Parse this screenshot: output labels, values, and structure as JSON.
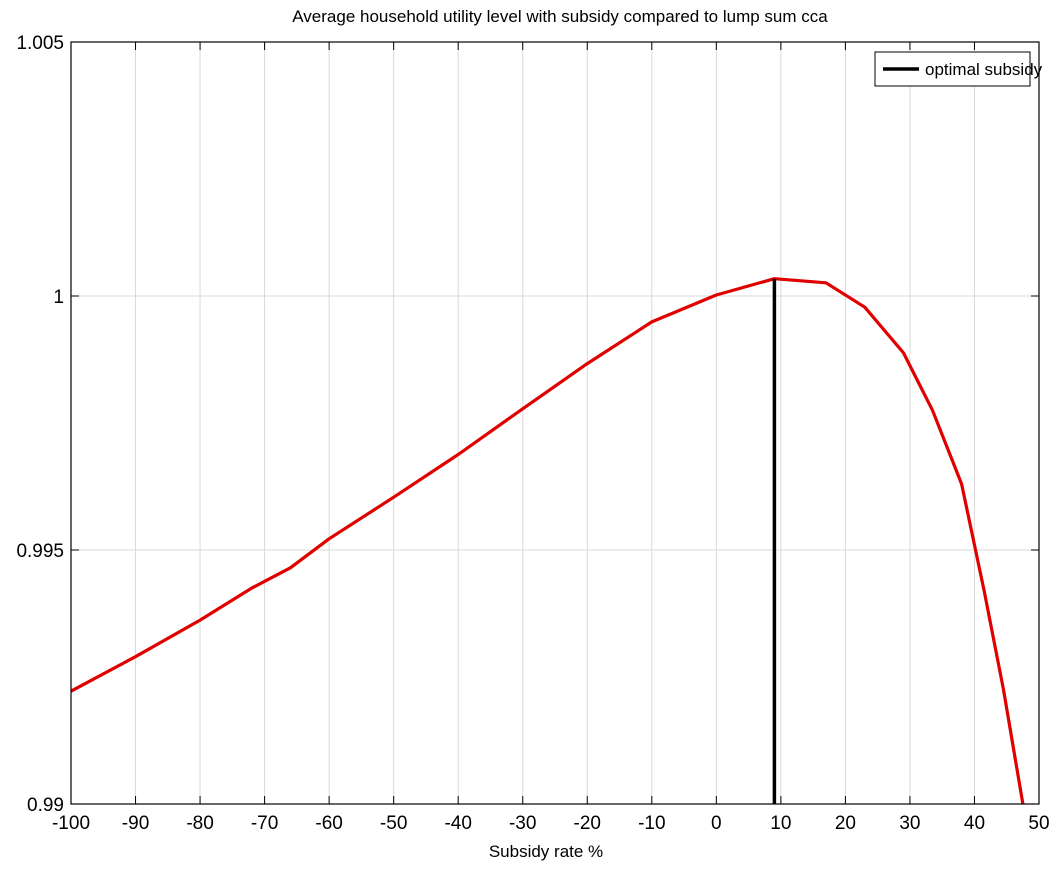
{
  "chart_data": {
    "type": "line",
    "title": "Average household utility level with subsidy compared to lump sum cca",
    "xlabel": "Subsidy rate %",
    "ylabel": "",
    "xlim": [
      -100,
      50
    ],
    "ylim": [
      0.99,
      1.005
    ],
    "grid": true,
    "xticks": [
      -100,
      -90,
      -80,
      -70,
      -60,
      -50,
      -40,
      -30,
      -20,
      -10,
      0,
      10,
      20,
      30,
      40,
      50
    ],
    "yticks": [
      0.99,
      0.995,
      1,
      1.005
    ],
    "xtick_labels": [
      "-100",
      "-90",
      "-80",
      "-70",
      "-60",
      "-50",
      "-40",
      "-30",
      "-20",
      "-10",
      "0",
      "10",
      "20",
      "30",
      "40",
      "50"
    ],
    "ytick_labels": [
      "0.99",
      "0.995",
      "1",
      "1.005"
    ],
    "legend": {
      "placement": "top-right",
      "entries": [
        {
          "label": "optimal subsidy",
          "color": "#000000"
        }
      ]
    },
    "series": [
      {
        "color": "#e00000",
        "x": [
          -100,
          -90,
          -80,
          -72,
          -66,
          -60,
          -50,
          -40,
          -30,
          -20,
          -10,
          0,
          9,
          17,
          23,
          29,
          33.5,
          38,
          41.5,
          44.5,
          47.5
        ],
        "y": [
          0.99222,
          0.9929,
          0.99362,
          0.99425,
          0.99465,
          0.99522,
          0.99604,
          0.99688,
          0.99778,
          0.99867,
          0.99949,
          1.00002,
          1.00034,
          1.00026,
          0.99978,
          0.99888,
          0.99775,
          0.9963,
          0.9942,
          0.99225,
          0.98985
        ]
      },
      {
        "name": "optimal subsidy",
        "color": "#000000",
        "x": [
          9,
          9
        ],
        "y": [
          0.99,
          1.00034
        ]
      }
    ]
  }
}
